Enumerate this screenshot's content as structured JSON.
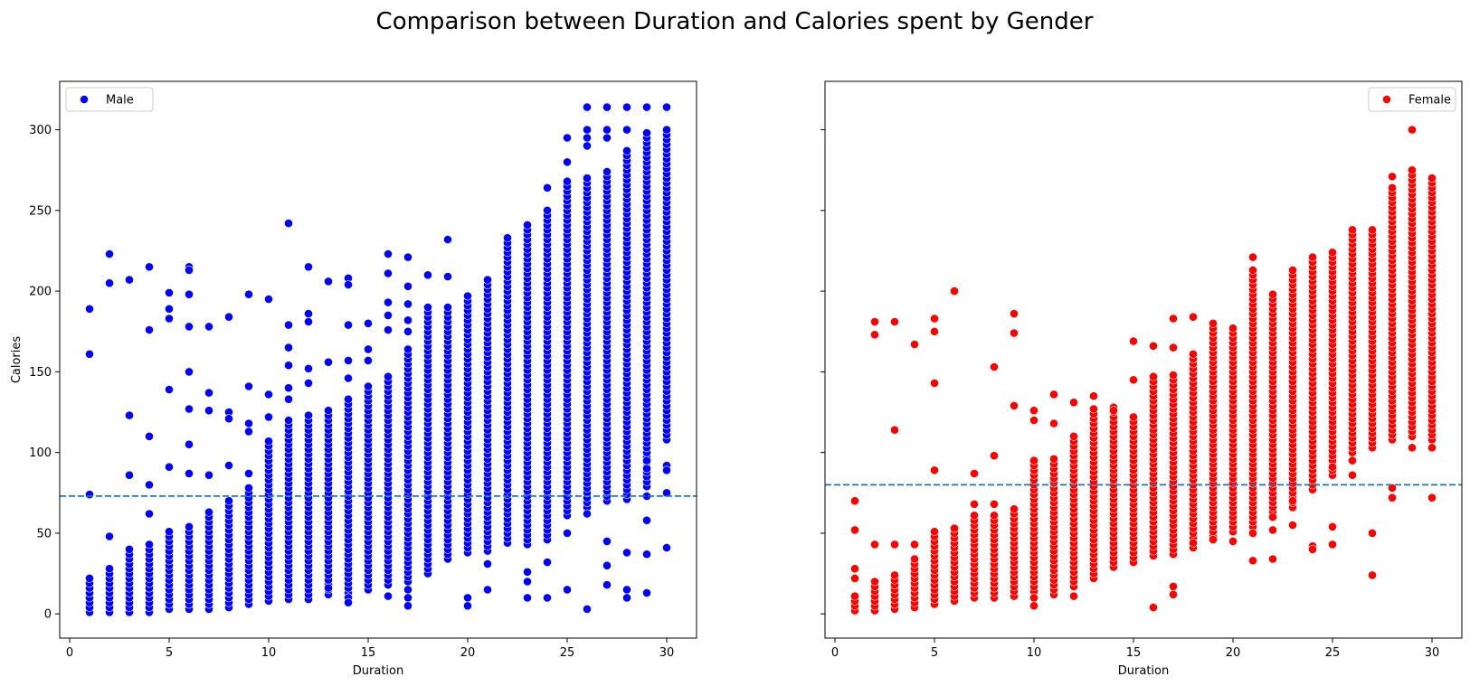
{
  "figure": {
    "suptitle": "Comparison between Duration and Calories spent by Gender"
  },
  "chart_data": [
    {
      "type": "scatter",
      "title": "",
      "xlabel": "Duration",
      "ylabel": "Calories",
      "xlim": [
        -0.5,
        31.5
      ],
      "ylim": [
        -15,
        330
      ],
      "xticks": [
        0,
        5,
        10,
        15,
        20,
        25,
        30
      ],
      "yticks": [
        0,
        50,
        100,
        150,
        200,
        250,
        300
      ],
      "legend": {
        "position": "upper-left",
        "label": "Male"
      },
      "series": [
        {
          "name": "Male",
          "color": "#0000ff",
          "ranges": [
            [
              1,
              1,
              24
            ],
            [
              2,
              1,
              29
            ],
            [
              3,
              1,
              40
            ],
            [
              4,
              1,
              44
            ],
            [
              5,
              3,
              53
            ],
            [
              6,
              3,
              55
            ],
            [
              7,
              3,
              63
            ],
            [
              8,
              4,
              70
            ],
            [
              9,
              6,
              79
            ],
            [
              10,
              8,
              108
            ],
            [
              11,
              9,
              120
            ],
            [
              12,
              9,
              125
            ],
            [
              13,
              12,
              127
            ],
            [
              14,
              13,
              134
            ],
            [
              15,
              15,
              141
            ],
            [
              16,
              18,
              148
            ],
            [
              17,
              20,
              165
            ],
            [
              18,
              25,
              190
            ],
            [
              19,
              34,
              192
            ],
            [
              20,
              38,
              199
            ],
            [
              21,
              39,
              207
            ],
            [
              22,
              44,
              235
            ],
            [
              23,
              43,
              241
            ],
            [
              24,
              46,
              250
            ],
            [
              25,
              61,
              270
            ],
            [
              26,
              66,
              270
            ],
            [
              27,
              70,
              275
            ],
            [
              28,
              71,
              289
            ],
            [
              29,
              79,
              300
            ],
            [
              30,
              108,
              300
            ]
          ],
          "outliers": [
            [
              1,
              189
            ],
            [
              1,
              161
            ],
            [
              1,
              74
            ],
            [
              2,
              223
            ],
            [
              2,
              205
            ],
            [
              2,
              48
            ],
            [
              3,
              207
            ],
            [
              3,
              123
            ],
            [
              3,
              86
            ],
            [
              4,
              215
            ],
            [
              4,
              176
            ],
            [
              4,
              110
            ],
            [
              4,
              80
            ],
            [
              4,
              62
            ],
            [
              5,
              199
            ],
            [
              5,
              189
            ],
            [
              5,
              183
            ],
            [
              5,
              139
            ],
            [
              5,
              91
            ],
            [
              6,
              215
            ],
            [
              6,
              213
            ],
            [
              6,
              198
            ],
            [
              6,
              178
            ],
            [
              6,
              150
            ],
            [
              6,
              127
            ],
            [
              6,
              105
            ],
            [
              6,
              87
            ],
            [
              7,
              178
            ],
            [
              7,
              137
            ],
            [
              7,
              126
            ],
            [
              7,
              86
            ],
            [
              8,
              184
            ],
            [
              8,
              125
            ],
            [
              8,
              121
            ],
            [
              8,
              92
            ],
            [
              9,
              198
            ],
            [
              9,
              141
            ],
            [
              9,
              118
            ],
            [
              9,
              113
            ],
            [
              9,
              87
            ],
            [
              10,
              195
            ],
            [
              10,
              136
            ],
            [
              10,
              122
            ],
            [
              11,
              242
            ],
            [
              11,
              179
            ],
            [
              11,
              165
            ],
            [
              11,
              154
            ],
            [
              11,
              140
            ],
            [
              11,
              133
            ],
            [
              12,
              215
            ],
            [
              12,
              186
            ],
            [
              12,
              181
            ],
            [
              12,
              152
            ],
            [
              12,
              143
            ],
            [
              13,
              206
            ],
            [
              13,
              156
            ],
            [
              13,
              16
            ],
            [
              14,
              208
            ],
            [
              14,
              204
            ],
            [
              14,
              179
            ],
            [
              14,
              157
            ],
            [
              14,
              146
            ],
            [
              14,
              10
            ],
            [
              14,
              7
            ],
            [
              15,
              180
            ],
            [
              15,
              164
            ],
            [
              15,
              157
            ],
            [
              16,
              223
            ],
            [
              16,
              211
            ],
            [
              16,
              193
            ],
            [
              16,
              185
            ],
            [
              16,
              176
            ],
            [
              16,
              11
            ],
            [
              17,
              221
            ],
            [
              17,
              203
            ],
            [
              17,
              192
            ],
            [
              17,
              182
            ],
            [
              17,
              175
            ],
            [
              17,
              15
            ],
            [
              17,
              10
            ],
            [
              17,
              5
            ],
            [
              18,
              210
            ],
            [
              19,
              232
            ],
            [
              19,
              209
            ],
            [
              20,
              10
            ],
            [
              20,
              5
            ],
            [
              21,
              31
            ],
            [
              21,
              15
            ],
            [
              23,
              26
            ],
            [
              23,
              20
            ],
            [
              23,
              10
            ],
            [
              24,
              264
            ],
            [
              24,
              32
            ],
            [
              24,
              10
            ],
            [
              25,
              295
            ],
            [
              25,
              280
            ],
            [
              25,
              50
            ],
            [
              25,
              15
            ],
            [
              26,
              314
            ],
            [
              26,
              300
            ],
            [
              26,
              295
            ],
            [
              26,
              290
            ],
            [
              26,
              62
            ],
            [
              26,
              3
            ],
            [
              27,
              314
            ],
            [
              27,
              300
            ],
            [
              27,
              295
            ],
            [
              27,
              45
            ],
            [
              27,
              30
            ],
            [
              27,
              18
            ],
            [
              28,
              314
            ],
            [
              28,
              300
            ],
            [
              28,
              38
            ],
            [
              28,
              15
            ],
            [
              28,
              10
            ],
            [
              29,
              314
            ],
            [
              29,
              95
            ],
            [
              29,
              90
            ],
            [
              29,
              73
            ],
            [
              29,
              58
            ],
            [
              29,
              37
            ],
            [
              29,
              13
            ],
            [
              30,
              314
            ],
            [
              30,
              92
            ],
            [
              30,
              89
            ],
            [
              30,
              75
            ],
            [
              30,
              41
            ]
          ]
        }
      ],
      "reference_line": {
        "y": 73,
        "color": "#1f77b4",
        "style": "dashed"
      }
    },
    {
      "type": "scatter",
      "title": "",
      "xlabel": "Duration",
      "ylabel": "",
      "xlim": [
        -0.5,
        31.5
      ],
      "ylim": [
        -15,
        330
      ],
      "xticks": [
        0,
        5,
        10,
        15,
        20,
        25,
        30
      ],
      "yticks": [
        0,
        50,
        100,
        150,
        200,
        250,
        300
      ],
      "legend": {
        "position": "upper-right",
        "label": "Female"
      },
      "series": [
        {
          "name": "Female",
          "color": "#ff0000",
          "ranges": [
            [
              1,
              2,
              11
            ],
            [
              2,
              2,
              20
            ],
            [
              3,
              3,
              26
            ],
            [
              4,
              4,
              34
            ],
            [
              5,
              6,
              52
            ],
            [
              6,
              8,
              54
            ],
            [
              7,
              10,
              61
            ],
            [
              8,
              10,
              61
            ],
            [
              9,
              11,
              66
            ],
            [
              10,
              14,
              95
            ],
            [
              11,
              12,
              97
            ],
            [
              12,
              17,
              110
            ],
            [
              13,
              22,
              129
            ],
            [
              14,
              29,
              128
            ],
            [
              15,
              32,
              123
            ],
            [
              16,
              36,
              149
            ],
            [
              17,
              37,
              150
            ],
            [
              18,
              41,
              162
            ],
            [
              19,
              48,
              180
            ],
            [
              20,
              51,
              179
            ],
            [
              21,
              54,
              213
            ],
            [
              22,
              60,
              198
            ],
            [
              23,
              66,
              214
            ],
            [
              24,
              77,
              222
            ],
            [
              25,
              86,
              226
            ],
            [
              26,
              100,
              240
            ],
            [
              27,
              103,
              239
            ],
            [
              28,
              108,
              265
            ],
            [
              29,
              110,
              275
            ],
            [
              30,
              108,
              272
            ]
          ],
          "outliers": [
            [
              1,
              70
            ],
            [
              1,
              52
            ],
            [
              1,
              28
            ],
            [
              1,
              22
            ],
            [
              2,
              181
            ],
            [
              2,
              173
            ],
            [
              2,
              43
            ],
            [
              3,
              181
            ],
            [
              3,
              114
            ],
            [
              3,
              43
            ],
            [
              4,
              167
            ],
            [
              4,
              43
            ],
            [
              5,
              183
            ],
            [
              5,
              175
            ],
            [
              5,
              143
            ],
            [
              5,
              89
            ],
            [
              6,
              200
            ],
            [
              7,
              87
            ],
            [
              7,
              68
            ],
            [
              8,
              153
            ],
            [
              8,
              98
            ],
            [
              8,
              68
            ],
            [
              9,
              186
            ],
            [
              9,
              174
            ],
            [
              9,
              129
            ],
            [
              10,
              126
            ],
            [
              10,
              120
            ],
            [
              10,
              10
            ],
            [
              10,
              5
            ],
            [
              11,
              136
            ],
            [
              11,
              118
            ],
            [
              12,
              131
            ],
            [
              12,
              11
            ],
            [
              13,
              135
            ],
            [
              14,
              126
            ],
            [
              15,
              169
            ],
            [
              15,
              145
            ],
            [
              16,
              166
            ],
            [
              16,
              4
            ],
            [
              17,
              183
            ],
            [
              17,
              165
            ],
            [
              17,
              17
            ],
            [
              17,
              12
            ],
            [
              18,
              184
            ],
            [
              18,
              44
            ],
            [
              19,
              46
            ],
            [
              20,
              45
            ],
            [
              21,
              221
            ],
            [
              21,
              33
            ],
            [
              21,
              50
            ],
            [
              22,
              60
            ],
            [
              22,
              52
            ],
            [
              22,
              34
            ],
            [
              23,
              55
            ],
            [
              23,
              70
            ],
            [
              24,
              42
            ],
            [
              24,
              40
            ],
            [
              25,
              54
            ],
            [
              25,
              43
            ],
            [
              25,
              91
            ],
            [
              26,
              95
            ],
            [
              26,
              86
            ],
            [
              27,
              50
            ],
            [
              27,
              24
            ],
            [
              28,
              72
            ],
            [
              28,
              78
            ],
            [
              28,
              271
            ],
            [
              29,
              300
            ],
            [
              29,
              103
            ],
            [
              30,
              72
            ],
            [
              30,
              103
            ]
          ]
        }
      ],
      "reference_line": {
        "y": 80,
        "color": "#1f77b4",
        "style": "dashed"
      }
    }
  ]
}
